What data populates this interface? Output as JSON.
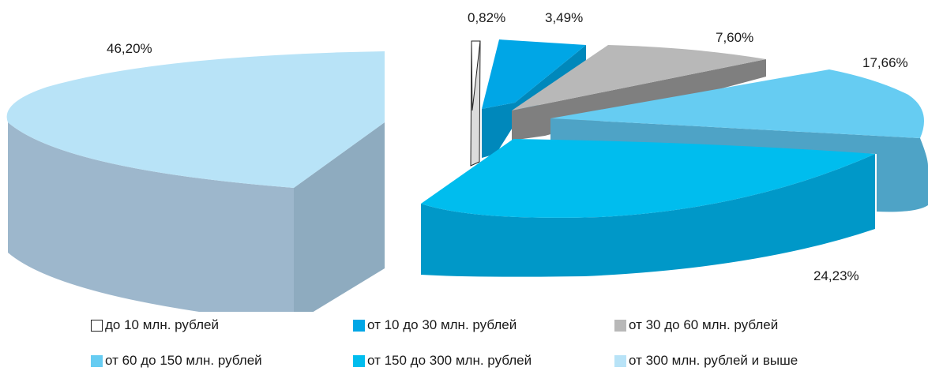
{
  "chart_data": {
    "type": "pie",
    "style": "3d-exploded",
    "title": "",
    "colors": [
      "#ffffff",
      "#00a6e6",
      "#b8b8b8",
      "#66ccf2",
      "#00bdee",
      "#b8e3f7"
    ],
    "slices": [
      {
        "label": "до 10 млн. рублей",
        "value": 0.82,
        "value_label": "0,82%"
      },
      {
        "label": "от 10 до 30 млн. рублей",
        "value": 3.49,
        "value_label": "3,49%"
      },
      {
        "label": "от 30 до 60 млн. рублей",
        "value": 7.6,
        "value_label": "7,60%"
      },
      {
        "label": "от 60 до 150 млн. рублей",
        "value": 17.66,
        "value_label": "17,66%"
      },
      {
        "label": "от 150 до 300 млн. рублей",
        "value": 24.23,
        "value_label": "24,23%"
      },
      {
        "label": "от 300 млн. рублей и выше",
        "value": 46.2,
        "value_label": "46,20%"
      }
    ],
    "legend_position": "bottom"
  }
}
